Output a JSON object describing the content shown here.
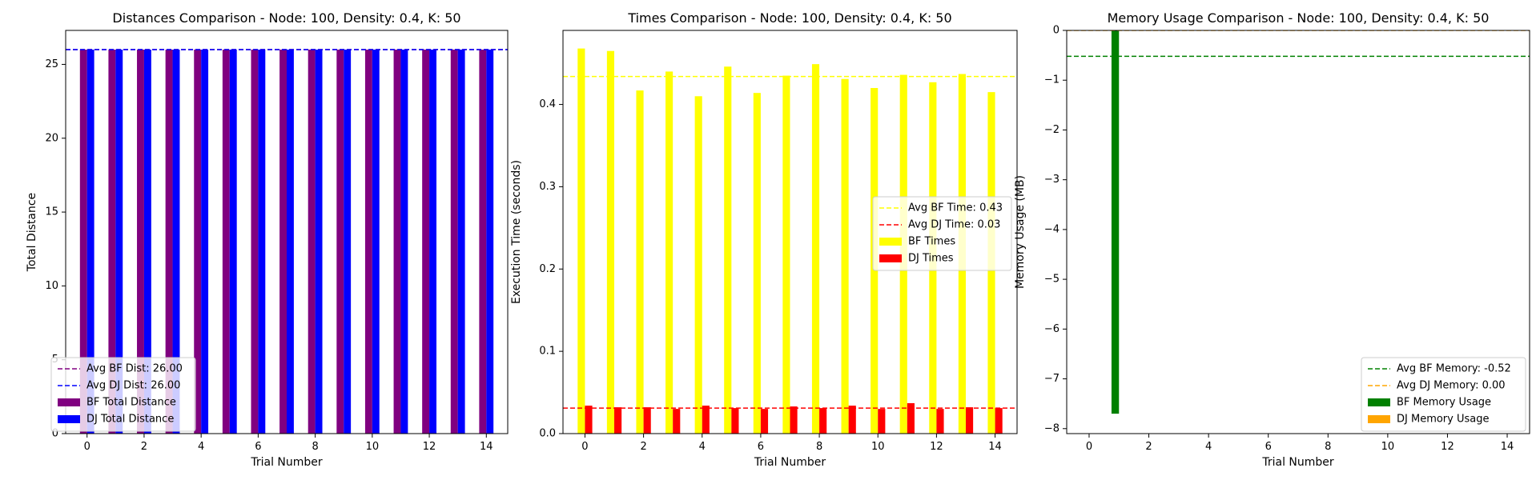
{
  "chart_data": [
    {
      "type": "bar",
      "title": "Distances Comparison - Node: 100, Density: 0.4, K: 50",
      "xlabel": "Trial Number",
      "ylabel": "Total Distance",
      "xlim": [
        -0.75,
        14.75
      ],
      "ylim": [
        0,
        27.3
      ],
      "xticks": [
        0,
        2,
        4,
        6,
        8,
        10,
        12,
        14
      ],
      "yticks": [
        0,
        5,
        10,
        15,
        20,
        25
      ],
      "x": [
        0,
        1,
        2,
        3,
        4,
        5,
        6,
        7,
        8,
        9,
        10,
        11,
        12,
        13,
        14
      ],
      "series": [
        {
          "name": "BF Total Distance",
          "color": "#800080",
          "values": [
            26,
            26,
            26,
            26,
            26,
            26,
            26,
            26,
            26,
            26,
            26,
            26,
            26,
            26,
            26
          ]
        },
        {
          "name": "DJ Total Distance",
          "color": "#0000ff",
          "values": [
            26,
            26,
            26,
            26,
            26,
            26,
            26,
            26,
            26,
            26,
            26,
            26,
            26,
            26,
            26
          ]
        }
      ],
      "hlines": [
        {
          "name": "Avg BF Dist: 26.00",
          "value": 26.0,
          "color": "#800080"
        },
        {
          "name": "Avg DJ Dist: 26.00",
          "value": 26.0,
          "color": "#0000ff"
        }
      ],
      "legend_loc": "lower-left",
      "grid": false
    },
    {
      "type": "bar",
      "title": "Times Comparison - Node: 100, Density: 0.4, K: 50",
      "xlabel": "Trial Number",
      "ylabel": "Execution Time (seconds)",
      "xlim": [
        -0.75,
        14.75
      ],
      "ylim": [
        0,
        0.49
      ],
      "xticks": [
        0,
        2,
        4,
        6,
        8,
        10,
        12,
        14
      ],
      "yticks": [
        0.0,
        0.1,
        0.2,
        0.3,
        0.4
      ],
      "ytick_format": "%.1f",
      "x": [
        0,
        1,
        2,
        3,
        4,
        5,
        6,
        7,
        8,
        9,
        10,
        11,
        12,
        13,
        14
      ],
      "series": [
        {
          "name": "BF Times",
          "color": "#ffff00",
          "values": [
            0.468,
            0.465,
            0.417,
            0.44,
            0.41,
            0.446,
            0.414,
            0.435,
            0.449,
            0.431,
            0.42,
            0.436,
            0.427,
            0.437,
            0.415
          ]
        },
        {
          "name": "DJ Times",
          "color": "#ff0000",
          "values": [
            0.034,
            0.032,
            0.032,
            0.03,
            0.034,
            0.031,
            0.03,
            0.033,
            0.031,
            0.034,
            0.03,
            0.037,
            0.03,
            0.032,
            0.031
          ]
        }
      ],
      "hlines": [
        {
          "name": "Avg BF Time: 0.43",
          "value": 0.434,
          "color": "#ffff00"
        },
        {
          "name": "Avg DJ Time: 0.03",
          "value": 0.031,
          "color": "#ff0000"
        }
      ],
      "legend_loc": "center-right",
      "grid": false
    },
    {
      "type": "bar",
      "title": "Memory Usage Comparison - Node: 100, Density: 0.4, K: 50",
      "xlabel": "Trial Number",
      "ylabel": "Memory Usage (MB)",
      "xlim": [
        -0.75,
        14.75
      ],
      "ylim": [
        -8.1,
        0
      ],
      "xticks": [
        0,
        2,
        4,
        6,
        8,
        10,
        12,
        14
      ],
      "yticks": [
        0,
        -1,
        -2,
        -3,
        -4,
        -5,
        -6,
        -7,
        -8
      ],
      "x": [
        0,
        1,
        2,
        3,
        4,
        5,
        6,
        7,
        8,
        9,
        10,
        11,
        12,
        13,
        14
      ],
      "series": [
        {
          "name": "BF Memory Usage",
          "color": "#008000",
          "values": [
            0,
            -7.7,
            0,
            0,
            0,
            0,
            0,
            0,
            0,
            0,
            0,
            0,
            0,
            0,
            0
          ]
        },
        {
          "name": "DJ Memory Usage",
          "color": "#ffa500",
          "values": [
            0,
            0,
            0,
            0,
            0,
            0,
            0,
            0,
            0,
            0,
            0,
            0,
            0,
            0,
            0
          ]
        }
      ],
      "hlines": [
        {
          "name": "Avg BF Memory: -0.52",
          "value": -0.52,
          "color": "#008000"
        },
        {
          "name": "Avg DJ Memory: 0.00",
          "value": 0.0,
          "color": "#ffa500"
        }
      ],
      "legend_loc": "lower-right",
      "grid": false
    }
  ]
}
